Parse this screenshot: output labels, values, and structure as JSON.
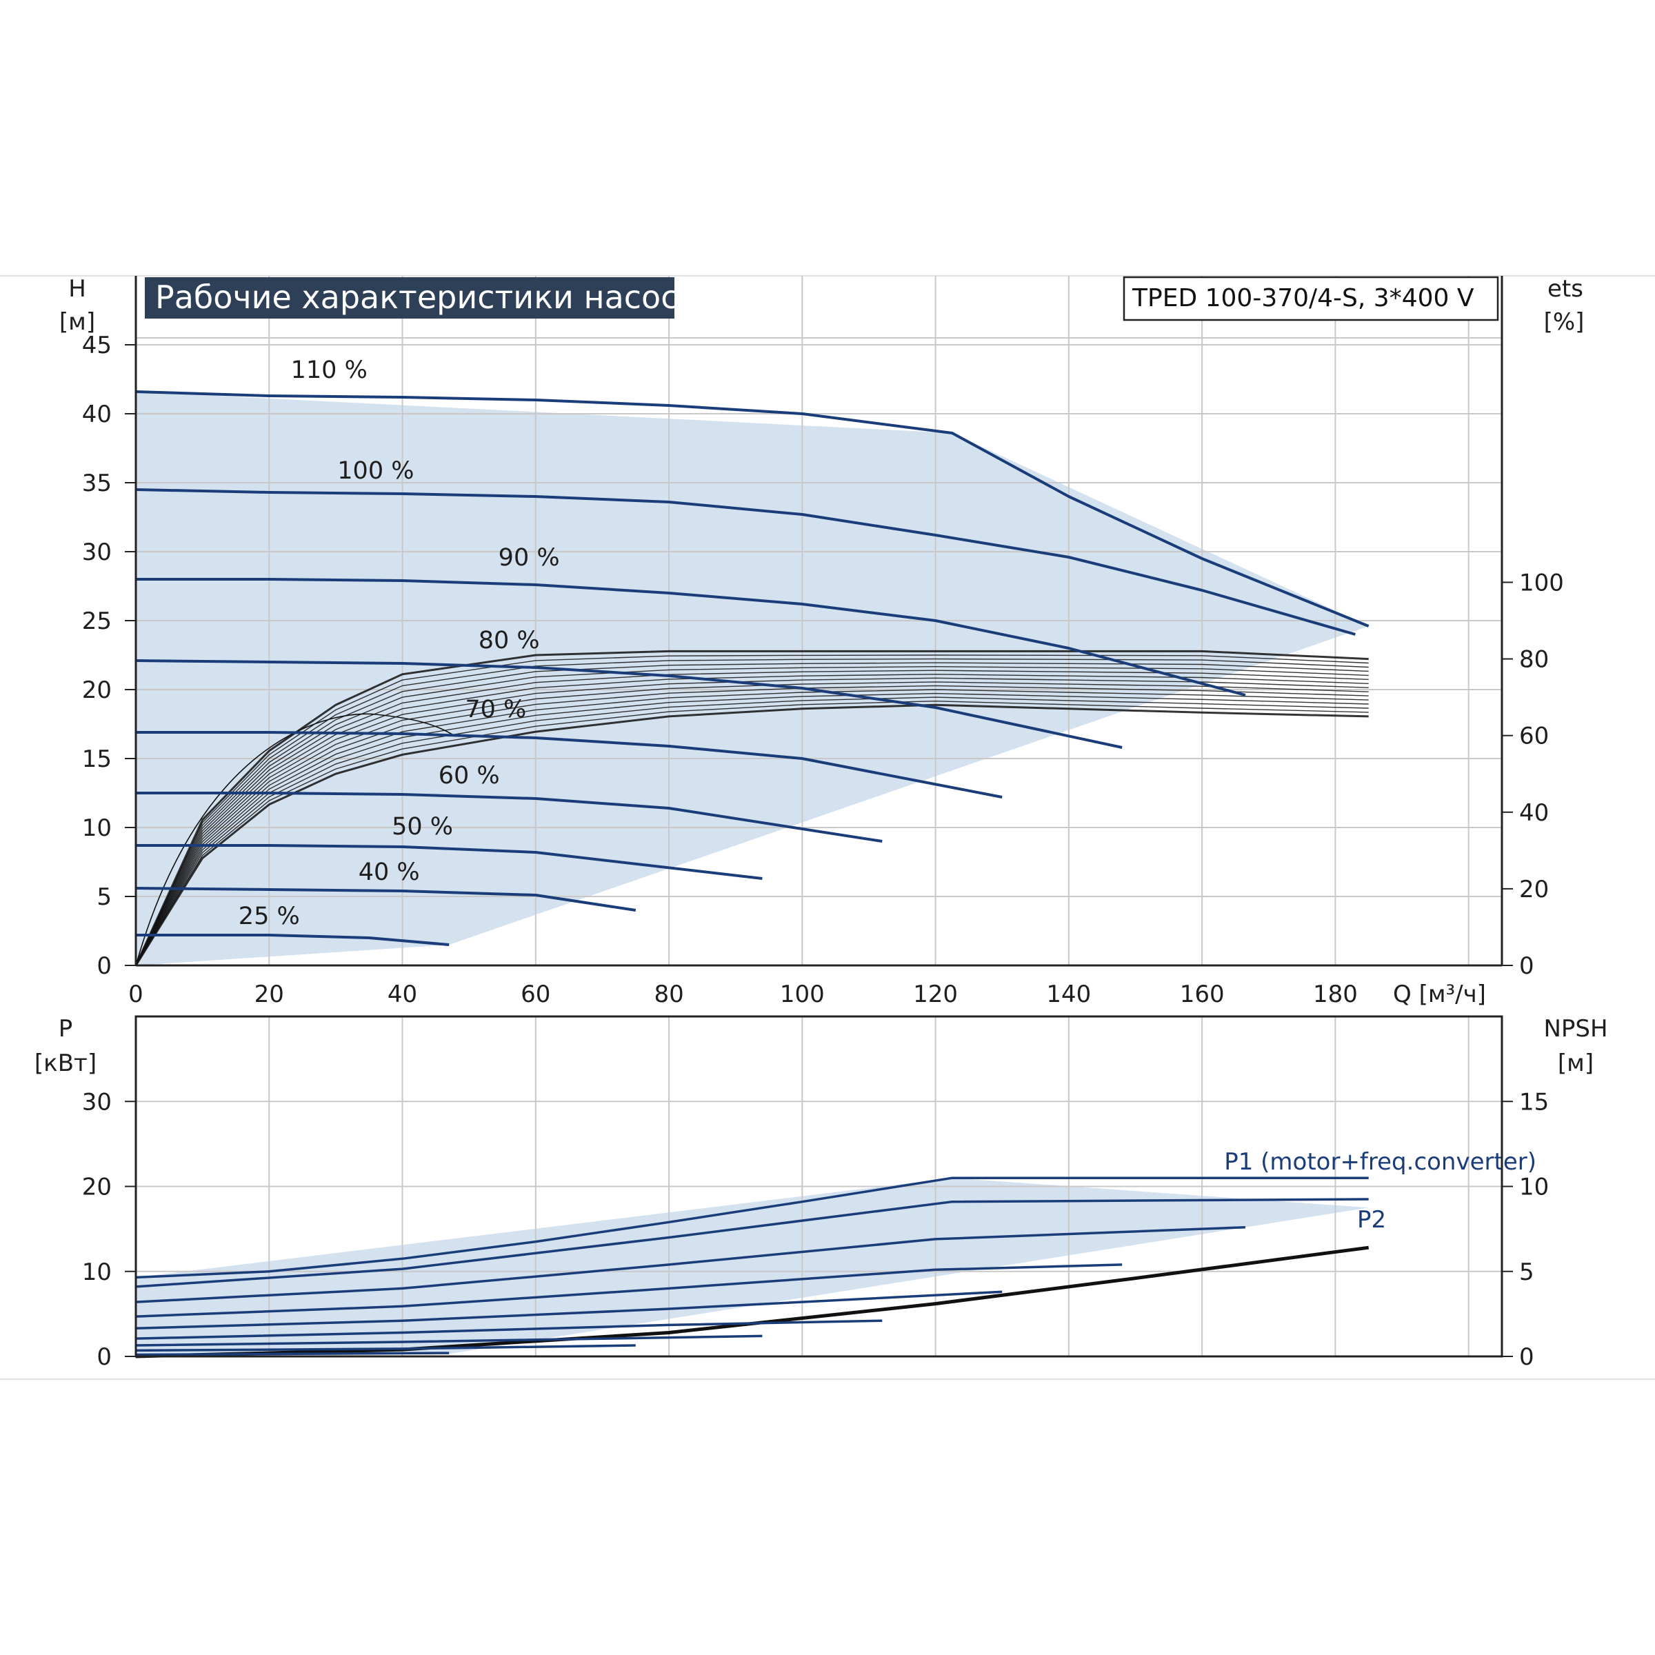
{
  "colors": {
    "curve": "#1a3d7a",
    "envelope": "#d4e1ef",
    "envelope_light": "#eef5fc",
    "grid": "#c8c8c8",
    "frame": "#222222",
    "eff": "#111111",
    "title_bg": "#2e3f58"
  },
  "chart_data": [
    {
      "id": "head",
      "type": "line",
      "title": "Рабочие характеристики насоса",
      "model": "TPED 100-370/4-S, 3*400 V",
      "ylabel": "H",
      "yunit": "[м]",
      "y2label": "ets",
      "y2unit": "[%]",
      "xlabel": "Q [м³/ч]",
      "xlim": [
        0,
        205
      ],
      "ylim": [
        0,
        50
      ],
      "xticks": [
        "0",
        "20",
        "40",
        "60",
        "80",
        "100",
        "120",
        "140",
        "160",
        "180"
      ],
      "yticks": [
        "0",
        "5",
        "10",
        "15",
        "20",
        "25",
        "30",
        "35",
        "40",
        "45"
      ],
      "y2ticks": [
        "0",
        "20",
        "40",
        "60",
        "80",
        "100"
      ],
      "y2lim": [
        0,
        180
      ],
      "grid": true,
      "envelope": [
        [
          0,
          41.6
        ],
        [
          122.5,
          38.6
        ],
        [
          185,
          24.6
        ],
        [
          47,
          1.5
        ],
        [
          0,
          0
        ]
      ],
      "series": [
        {
          "label": "110 %",
          "points": [
            [
              0,
              41.6
            ],
            [
              20,
              41.3
            ],
            [
              40,
              41.2
            ],
            [
              60,
              41.0
            ],
            [
              80,
              40.6
            ],
            [
              100,
              40.0
            ],
            [
              122.5,
              38.6
            ],
            [
              140,
              34.0
            ],
            [
              160,
              29.5
            ],
            [
              185,
              24.6
            ]
          ]
        },
        {
          "label": "100 %",
          "points": [
            [
              0,
              34.5
            ],
            [
              20,
              34.3
            ],
            [
              40,
              34.2
            ],
            [
              60,
              34.0
            ],
            [
              80,
              33.6
            ],
            [
              100,
              32.7
            ],
            [
              120,
              31.2
            ],
            [
              140,
              29.6
            ],
            [
              160,
              27.2
            ],
            [
              183,
              24.0
            ]
          ]
        },
        {
          "label": "90 %",
          "points": [
            [
              0,
              28.0
            ],
            [
              20,
              28.0
            ],
            [
              40,
              27.9
            ],
            [
              60,
              27.6
            ],
            [
              80,
              27.0
            ],
            [
              100,
              26.2
            ],
            [
              120,
              25.0
            ],
            [
              140,
              23.0
            ],
            [
              166.5,
              19.6
            ]
          ]
        },
        {
          "label": "80 %",
          "points": [
            [
              0,
              22.1
            ],
            [
              20,
              22.0
            ],
            [
              40,
              21.9
            ],
            [
              60,
              21.6
            ],
            [
              80,
              21.0
            ],
            [
              100,
              20.1
            ],
            [
              120,
              18.7
            ],
            [
              148,
              15.8
            ]
          ]
        },
        {
          "label": "70 %",
          "points": [
            [
              0,
              16.9
            ],
            [
              20,
              16.9
            ],
            [
              40,
              16.8
            ],
            [
              60,
              16.5
            ],
            [
              80,
              15.9
            ],
            [
              100,
              15.0
            ],
            [
              130,
              12.2
            ]
          ]
        },
        {
          "label": "60 %",
          "points": [
            [
              0,
              12.5
            ],
            [
              20,
              12.5
            ],
            [
              40,
              12.4
            ],
            [
              60,
              12.1
            ],
            [
              80,
              11.4
            ],
            [
              112,
              9.0
            ]
          ]
        },
        {
          "label": "50 %",
          "points": [
            [
              0,
              8.7
            ],
            [
              20,
              8.7
            ],
            [
              40,
              8.6
            ],
            [
              60,
              8.2
            ],
            [
              94,
              6.3
            ]
          ]
        },
        {
          "label": "40 %",
          "points": [
            [
              0,
              5.6
            ],
            [
              20,
              5.5
            ],
            [
              40,
              5.4
            ],
            [
              60,
              5.1
            ],
            [
              75,
              4.0
            ]
          ]
        },
        {
          "label": "25 %",
          "points": [
            [
              0,
              2.2
            ],
            [
              20,
              2.2
            ],
            [
              35,
              2.0
            ],
            [
              47,
              1.5
            ]
          ]
        }
      ],
      "efficiency": [
        {
          "label": "ets",
          "points": [
            [
              0,
              0
            ],
            [
              10,
              38
            ],
            [
              20,
              56
            ],
            [
              30,
              68
            ],
            [
              40,
              76
            ],
            [
              60,
              81
            ],
            [
              80,
              82
            ],
            [
              100,
              82
            ],
            [
              120,
              82
            ],
            [
              140,
              82
            ],
            [
              160,
              82
            ],
            [
              185,
              80
            ]
          ]
        },
        {
          "label": "ets",
          "points": [
            [
              0,
              0
            ],
            [
              10,
              28
            ],
            [
              20,
              42
            ],
            [
              30,
              50
            ],
            [
              40,
              55
            ],
            [
              60,
              61
            ],
            [
              80,
              65
            ],
            [
              100,
              67
            ],
            [
              120,
              68
            ],
            [
              140,
              67
            ],
            [
              160,
              66
            ],
            [
              185,
              65
            ]
          ]
        }
      ]
    },
    {
      "id": "power",
      "type": "line",
      "ylabel": "P",
      "yunit": "[кВт]",
      "y2label": "NPSH",
      "y2unit": "[м]",
      "xlim": [
        0,
        205
      ],
      "ylim": [
        0,
        40
      ],
      "yticks": [
        "0",
        "10",
        "20",
        "30"
      ],
      "y2ticks": [
        "0",
        "5",
        "10",
        "15"
      ],
      "y2lim": [
        0,
        20
      ],
      "grid": true,
      "envelope": [
        [
          0,
          9.3
        ],
        [
          122.5,
          21.0
        ],
        [
          185,
          17.5
        ],
        [
          47,
          0.3
        ],
        [
          0,
          0
        ]
      ],
      "series": [
        {
          "label": "P1 (motor+freq.converter)",
          "points": [
            [
              0,
              9.3
            ],
            [
              20,
              10.0
            ],
            [
              40,
              11.5
            ],
            [
              60,
              13.5
            ],
            [
              80,
              15.8
            ],
            [
              100,
              18.2
            ],
            [
              122.5,
              21.0
            ],
            [
              185,
              21.0
            ]
          ]
        },
        {
          "label": "P2",
          "points": [
            [
              0,
              8.2
            ],
            [
              40,
              10.3
            ],
            [
              80,
              14.0
            ],
            [
              122.5,
              18.2
            ],
            [
              185,
              18.5
            ]
          ]
        },
        {
          "label": "",
          "points": [
            [
              0,
              6.4
            ],
            [
              40,
              8.0
            ],
            [
              80,
              10.8
            ],
            [
              120,
              13.8
            ],
            [
              166.5,
              15.2
            ]
          ]
        },
        {
          "label": "",
          "points": [
            [
              0,
              4.7
            ],
            [
              40,
              5.9
            ],
            [
              80,
              8.0
            ],
            [
              120,
              10.2
            ],
            [
              148,
              10.8
            ]
          ]
        },
        {
          "label": "",
          "points": [
            [
              0,
              3.3
            ],
            [
              40,
              4.2
            ],
            [
              80,
              5.6
            ],
            [
              130,
              7.6
            ]
          ]
        },
        {
          "label": "",
          "points": [
            [
              0,
              2.1
            ],
            [
              40,
              2.8
            ],
            [
              80,
              3.7
            ],
            [
              112,
              4.2
            ]
          ]
        },
        {
          "label": "",
          "points": [
            [
              0,
              1.3
            ],
            [
              40,
              1.7
            ],
            [
              94,
              2.4
            ]
          ]
        },
        {
          "label": "",
          "points": [
            [
              0,
              0.7
            ],
            [
              40,
              0.9
            ],
            [
              75,
              1.3
            ]
          ]
        },
        {
          "label": "",
          "points": [
            [
              0,
              0.2
            ],
            [
              47,
              0.4
            ]
          ]
        }
      ],
      "npsh": {
        "label": "NPSH",
        "points": [
          [
            0,
            0
          ],
          [
            40,
            0.4
          ],
          [
            80,
            1.4
          ],
          [
            120,
            3.1
          ],
          [
            150,
            4.6
          ],
          [
            185,
            6.4
          ]
        ]
      }
    }
  ]
}
